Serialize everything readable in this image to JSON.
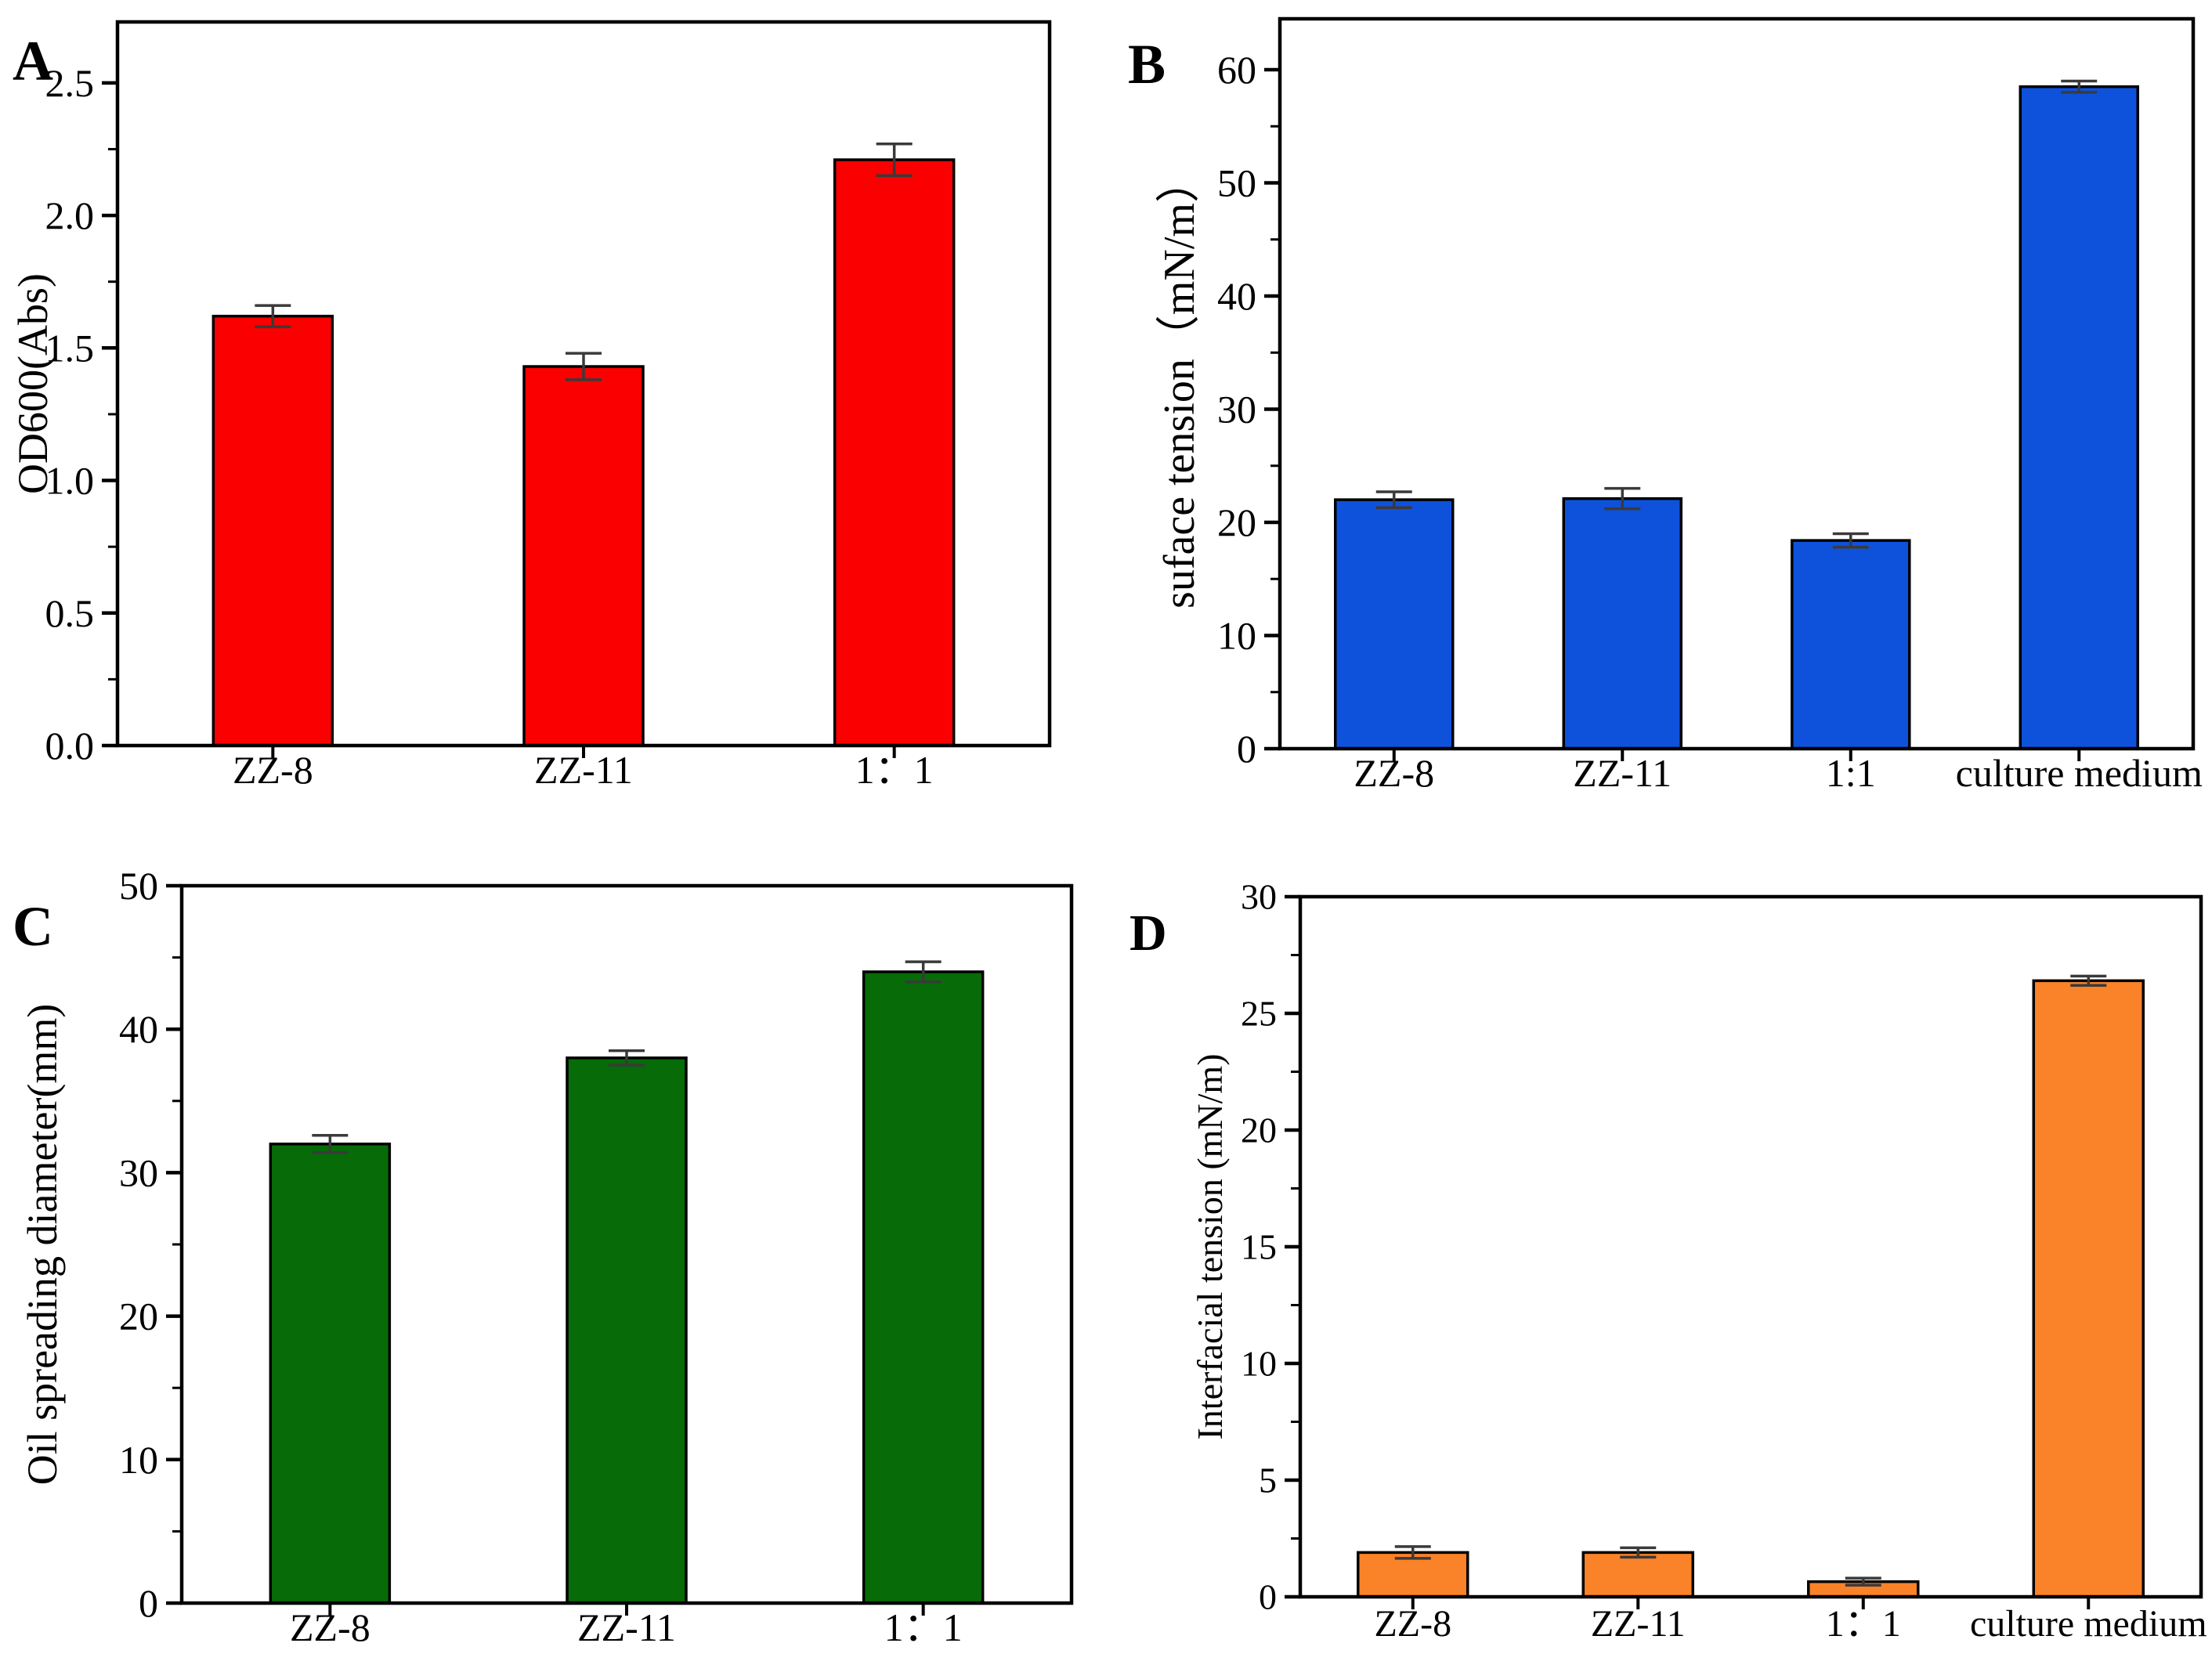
{
  "figure": {
    "background": "#ffffff",
    "panel_letters": [
      "A",
      "B",
      "C",
      "D"
    ]
  },
  "styles": {
    "axis_color": "#000000",
    "bar_edge_color": "#000000",
    "error_bar_color": "#3a3a3a"
  },
  "chart_data": [
    {
      "type": "bar",
      "panel_letter": "A",
      "title": "",
      "xlabel": "",
      "ylabel": "OD600(Abs)",
      "categories": [
        "ZZ-8",
        "ZZ-11",
        "1：1"
      ],
      "values": [
        1.62,
        1.43,
        2.21
      ],
      "errors": [
        0.04,
        0.05,
        0.06
      ],
      "bar_color": "#fa0000",
      "ylim": [
        0,
        2.73
      ],
      "yticks_major": 0.5,
      "yticks_minor": 0.25,
      "ytick_max_label": 2.5,
      "ytick_decimals": 1,
      "grid": false,
      "legend": false
    },
    {
      "type": "bar",
      "panel_letter": "B",
      "title": "",
      "xlabel": "",
      "ylabel": "suface tension（mN/m）",
      "categories": [
        "ZZ-8",
        "ZZ-11",
        "1:1",
        "culture medium"
      ],
      "values": [
        22.0,
        22.1,
        18.4,
        58.5
      ],
      "errors": [
        0.7,
        0.9,
        0.6,
        0.5
      ],
      "bar_color": "#0e52dc",
      "ylim": [
        0,
        64.5
      ],
      "yticks_major": 10,
      "yticks_minor": 5,
      "ytick_max_label": 60,
      "ytick_decimals": 0,
      "grid": false,
      "legend": false
    },
    {
      "type": "bar",
      "panel_letter": "C",
      "title": "",
      "xlabel": "",
      "ylabel": "Oil spreading diameter(mm)",
      "categories": [
        "ZZ-8",
        "ZZ-11",
        "1：1"
      ],
      "values": [
        32,
        38,
        44
      ],
      "errors": [
        0.6,
        0.5,
        0.7
      ],
      "bar_color": "#076b07",
      "ylim": [
        0,
        50
      ],
      "yticks_major": 10,
      "yticks_minor": 5,
      "ytick_max_label": 50,
      "ytick_decimals": 0,
      "grid": false,
      "legend": false
    },
    {
      "type": "bar",
      "panel_letter": "D",
      "title": "",
      "xlabel": "",
      "ylabel": "Interfacial tension (mN/m)",
      "categories": [
        "ZZ-8",
        "ZZ-11",
        "1：1",
        "culture medium"
      ],
      "values": [
        1.9,
        1.9,
        0.65,
        26.4
      ],
      "errors": [
        0.25,
        0.2,
        0.15,
        0.2
      ],
      "bar_color": "#fa8228",
      "ylim": [
        0,
        30
      ],
      "yticks_major": 5,
      "yticks_minor": 2.5,
      "ytick_max_label": 30,
      "ytick_decimals": 0,
      "grid": false,
      "legend": false
    }
  ]
}
